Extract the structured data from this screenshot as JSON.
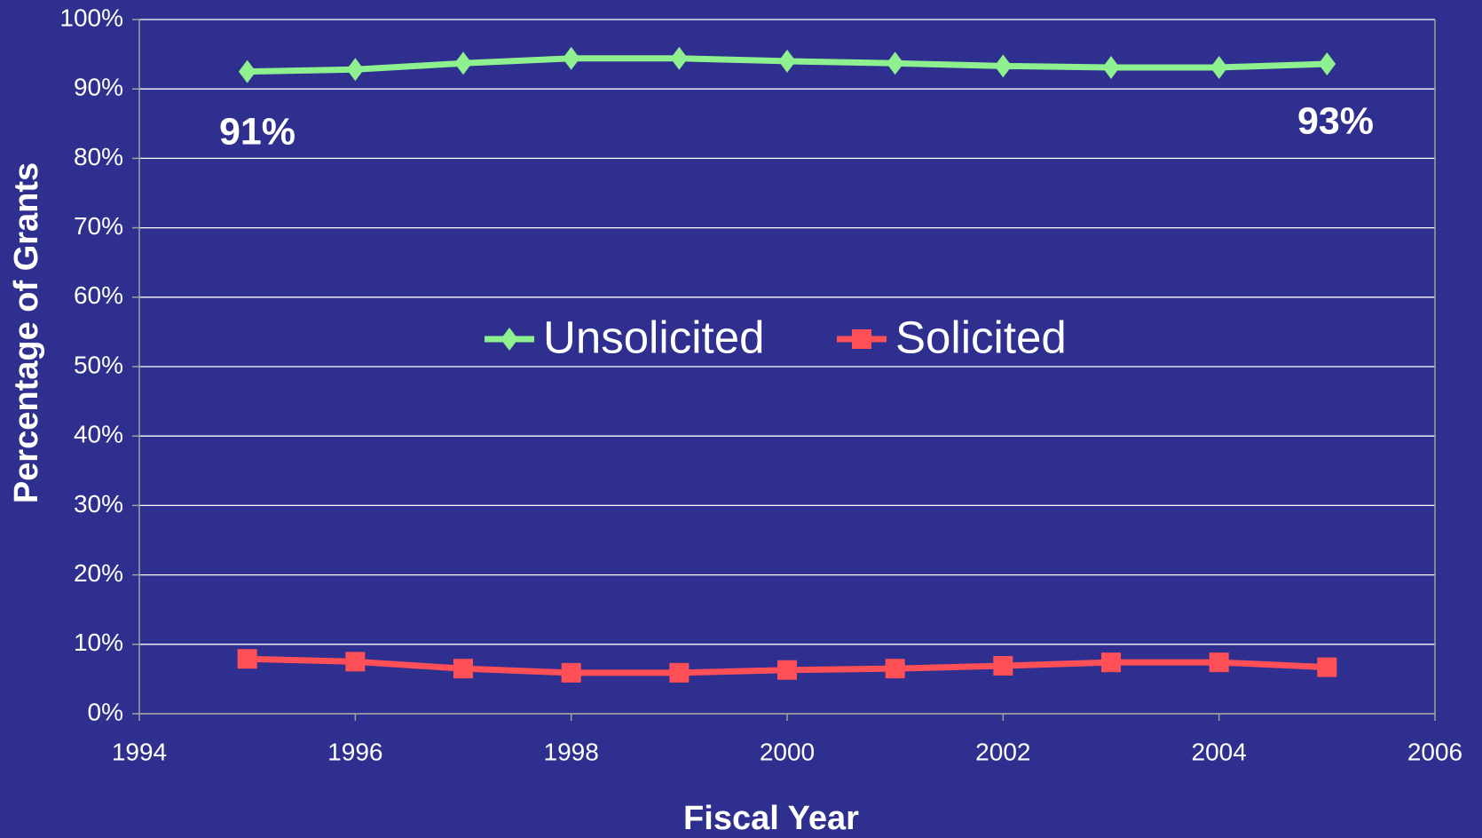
{
  "chart_data": {
    "type": "line",
    "x": [
      1995,
      1996,
      1997,
      1998,
      1999,
      2000,
      2001,
      2002,
      2003,
      2004,
      2005
    ],
    "series": [
      {
        "name": "Unsolicited",
        "color": "#8ef08e",
        "marker": "diamond",
        "values": [
          92.5,
          92.8,
          93.7,
          94.4,
          94.4,
          94.0,
          93.7,
          93.3,
          93.1,
          93.1,
          93.6
        ]
      },
      {
        "name": "Solicited",
        "color": "#ff4f57",
        "marker": "square",
        "values": [
          7.9,
          7.5,
          6.5,
          5.9,
          5.9,
          6.3,
          6.5,
          6.9,
          7.4,
          7.4,
          6.7
        ]
      }
    ],
    "xlim": [
      1994,
      2006
    ],
    "xticks": [
      1994,
      1996,
      1998,
      2000,
      2002,
      2004,
      2006
    ],
    "ylim": [
      0,
      100
    ],
    "yticks": [
      {
        "value": 0,
        "label": "0%"
      },
      {
        "value": 10,
        "label": "10%"
      },
      {
        "value": 20,
        "label": "20%"
      },
      {
        "value": 30,
        "label": "30%"
      },
      {
        "value": 40,
        "label": "40%"
      },
      {
        "value": 50,
        "label": "50%"
      },
      {
        "value": 60,
        "label": "60%"
      },
      {
        "value": 70,
        "label": "70%"
      },
      {
        "value": 80,
        "label": "80%"
      },
      {
        "value": 90,
        "label": "90%"
      },
      {
        "value": 100,
        "label": "100%"
      }
    ],
    "grid": true,
    "legend": "center",
    "xlabel": "Fiscal Year",
    "ylabel": "Percentage of Grants",
    "annotations": [
      "91%",
      "93%"
    ]
  }
}
